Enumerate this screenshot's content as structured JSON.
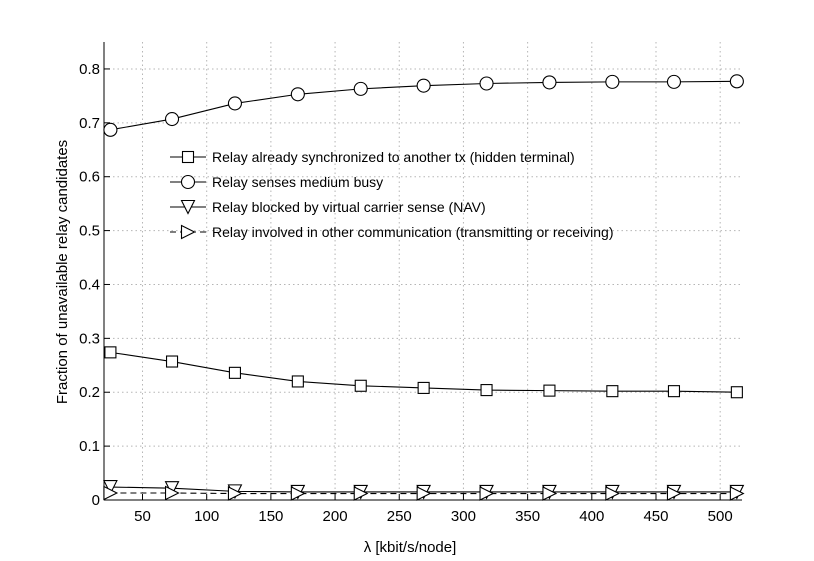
{
  "chart_data": {
    "type": "line",
    "title": "",
    "xlabel": "λ  [kbit/s/node]",
    "ylabel": "Fraction of unavailable relay candidates",
    "xlim": [
      20,
      517
    ],
    "ylim": [
      0,
      0.85
    ],
    "xticks": [
      50,
      100,
      150,
      200,
      250,
      300,
      350,
      400,
      450,
      500
    ],
    "yticks": [
      0,
      0.1,
      0.2,
      0.3,
      0.4,
      0.5,
      0.6,
      0.7,
      0.8
    ],
    "xtick_labels": [
      "50",
      "100",
      "150",
      "200",
      "250",
      "300",
      "350",
      "400",
      "450",
      "500"
    ],
    "ytick_labels": [
      "0",
      "0.1",
      "0.2",
      "0.3",
      "0.4",
      "0.5",
      "0.6",
      "0.7",
      "0.8"
    ],
    "grid": true,
    "legend_position": "upper-center",
    "x": [
      25,
      73,
      122,
      171,
      220,
      269,
      318,
      367,
      416,
      464,
      513
    ],
    "series": [
      {
        "name": "Relay already synchronized to another tx (hidden terminal)",
        "marker": "square",
        "line_style": "solid",
        "values": [
          0.274,
          0.257,
          0.236,
          0.22,
          0.212,
          0.208,
          0.204,
          0.203,
          0.202,
          0.202,
          0.2
        ]
      },
      {
        "name": "Relay senses medium busy",
        "marker": "circle",
        "line_style": "solid",
        "values": [
          0.687,
          0.707,
          0.736,
          0.753,
          0.763,
          0.769,
          0.773,
          0.775,
          0.776,
          0.776,
          0.777
        ]
      },
      {
        "name": "Relay blocked by virtual carrier sense (NAV)",
        "marker": "triangle-down",
        "line_style": "solid",
        "values": [
          0.024,
          0.022,
          0.016,
          0.015,
          0.015,
          0.015,
          0.015,
          0.015,
          0.015,
          0.015,
          0.015
        ]
      },
      {
        "name": "Relay involved in other communication (transmitting or receiving)",
        "marker": "triangle-right",
        "line_style": "dashed",
        "values": [
          0.013,
          0.013,
          0.012,
          0.012,
          0.012,
          0.012,
          0.012,
          0.012,
          0.012,
          0.012,
          0.012
        ]
      }
    ]
  }
}
